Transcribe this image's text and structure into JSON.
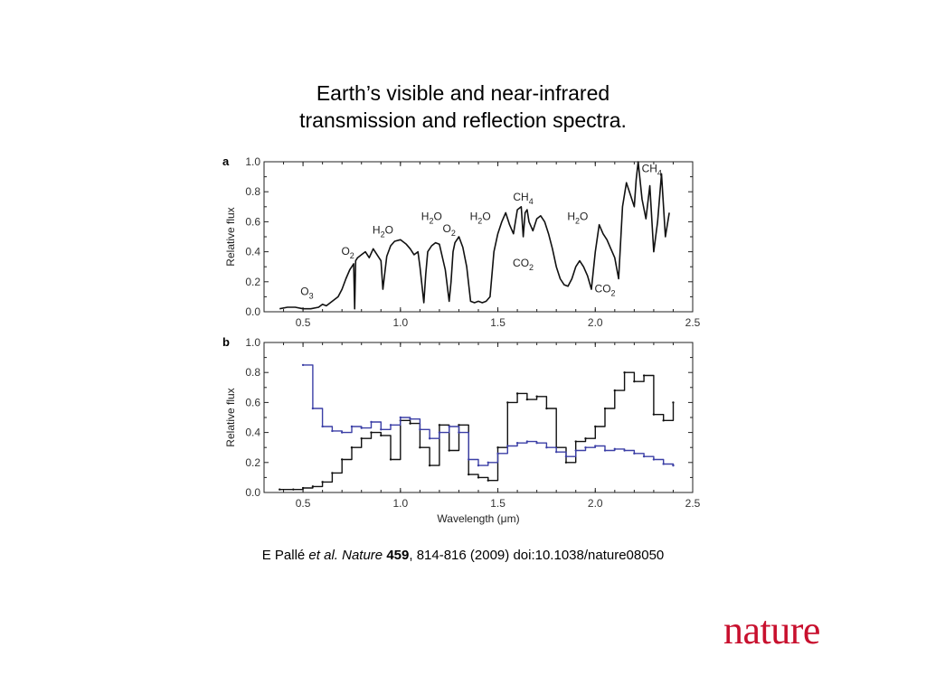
{
  "slide": {
    "title_line1": "Earth’s visible and near-infrared",
    "title_line2": "transmission and reflection spectra.",
    "citation": {
      "author": "E Pallé ",
      "etal": "et al.",
      "journal": "Nature",
      "volume": "459",
      "rest": ", 814-816 (2009) doi:10.1038/nature08050"
    },
    "logo_text": "nature",
    "logo_color": "#c8102e"
  },
  "chart_data": [
    {
      "panel_label": "a",
      "type": "line",
      "ylabel": "Relative flux",
      "xlabel": "",
      "xlim": [
        0.3,
        2.5
      ],
      "ylim": [
        0.0,
        1.0
      ],
      "xticks": [
        "0.5",
        "1.0",
        "1.5",
        "2.0",
        "2.5"
      ],
      "yticks": [
        "0.0",
        "0.2",
        "0.4",
        "0.6",
        "0.8",
        "1.0"
      ],
      "series": [
        {
          "color": "#111111",
          "x": [
            0.38,
            0.42,
            0.46,
            0.5,
            0.54,
            0.58,
            0.6,
            0.62,
            0.65,
            0.68,
            0.7,
            0.72,
            0.74,
            0.75,
            0.76,
            0.765,
            0.77,
            0.78,
            0.8,
            0.82,
            0.84,
            0.86,
            0.88,
            0.9,
            0.91,
            0.93,
            0.95,
            0.97,
            1.0,
            1.03,
            1.05,
            1.07,
            1.09,
            1.1,
            1.12,
            1.13,
            1.14,
            1.16,
            1.18,
            1.2,
            1.23,
            1.25,
            1.26,
            1.27,
            1.28,
            1.3,
            1.32,
            1.34,
            1.36,
            1.38,
            1.4,
            1.42,
            1.44,
            1.46,
            1.48,
            1.5,
            1.52,
            1.54,
            1.56,
            1.58,
            1.6,
            1.62,
            1.63,
            1.64,
            1.65,
            1.66,
            1.68,
            1.7,
            1.72,
            1.74,
            1.76,
            1.78,
            1.8,
            1.82,
            1.84,
            1.86,
            1.88,
            1.9,
            1.92,
            1.94,
            1.96,
            1.98,
            2.0,
            2.02,
            2.04,
            2.06,
            2.08,
            2.1,
            2.12,
            2.14,
            2.16,
            2.18,
            2.2,
            2.21,
            2.22,
            2.24,
            2.26,
            2.28,
            2.3,
            2.32,
            2.34,
            2.36,
            2.38
          ],
          "y": [
            0.02,
            0.03,
            0.03,
            0.02,
            0.02,
            0.03,
            0.05,
            0.04,
            0.07,
            0.1,
            0.15,
            0.22,
            0.28,
            0.3,
            0.32,
            0.02,
            0.34,
            0.36,
            0.38,
            0.4,
            0.36,
            0.42,
            0.38,
            0.34,
            0.15,
            0.37,
            0.44,
            0.47,
            0.48,
            0.45,
            0.42,
            0.38,
            0.4,
            0.3,
            0.06,
            0.25,
            0.4,
            0.44,
            0.46,
            0.45,
            0.28,
            0.07,
            0.2,
            0.4,
            0.46,
            0.5,
            0.43,
            0.3,
            0.07,
            0.06,
            0.07,
            0.06,
            0.07,
            0.1,
            0.4,
            0.52,
            0.6,
            0.66,
            0.58,
            0.52,
            0.68,
            0.7,
            0.5,
            0.66,
            0.68,
            0.6,
            0.54,
            0.62,
            0.64,
            0.6,
            0.52,
            0.42,
            0.3,
            0.22,
            0.18,
            0.17,
            0.22,
            0.3,
            0.34,
            0.3,
            0.24,
            0.15,
            0.4,
            0.58,
            0.52,
            0.48,
            0.42,
            0.36,
            0.22,
            0.7,
            0.86,
            0.78,
            0.7,
            0.88,
            1.0,
            0.75,
            0.62,
            0.84,
            0.4,
            0.6,
            0.92,
            0.5,
            0.66
          ]
        }
      ],
      "annotations": [
        {
          "base": "O",
          "sub": "3",
          "x": 0.52,
          "y": 0.11
        },
        {
          "base": "O",
          "sub": "2",
          "x": 0.73,
          "y": 0.38
        },
        {
          "base": "H",
          "sub": "2",
          "suffix": "O",
          "x": 0.91,
          "y": 0.52
        },
        {
          "base": "H",
          "sub": "2",
          "suffix": "O",
          "x": 1.16,
          "y": 0.61
        },
        {
          "base": "O",
          "sub": "2",
          "x": 1.25,
          "y": 0.53
        },
        {
          "base": "H",
          "sub": "2",
          "suffix": "O",
          "x": 1.41,
          "y": 0.61
        },
        {
          "base": "CH",
          "sub": "4",
          "x": 1.63,
          "y": 0.74
        },
        {
          "base": "CO",
          "sub": "2",
          "x": 1.63,
          "y": 0.3
        },
        {
          "base": "H",
          "sub": "2",
          "suffix": "O",
          "x": 1.91,
          "y": 0.61
        },
        {
          "base": "CO",
          "sub": "2",
          "x": 2.05,
          "y": 0.13
        },
        {
          "base": "CH",
          "sub": "4",
          "x": 2.29,
          "y": 0.93
        }
      ]
    },
    {
      "panel_label": "b",
      "type": "line",
      "ylabel": "Relative flux",
      "xlabel": "Wavelength (μm)",
      "xlim": [
        0.3,
        2.5
      ],
      "ylim": [
        0.0,
        1.0
      ],
      "xticks": [
        "0.5",
        "1.0",
        "1.5",
        "2.0",
        "2.5"
      ],
      "yticks": [
        "0.0",
        "0.2",
        "0.4",
        "0.6",
        "0.8",
        "1.0"
      ],
      "series": [
        {
          "color": "#111111",
          "x": [
            0.38,
            0.45,
            0.5,
            0.55,
            0.6,
            0.65,
            0.7,
            0.75,
            0.8,
            0.85,
            0.9,
            0.95,
            1.0,
            1.05,
            1.1,
            1.15,
            1.2,
            1.25,
            1.3,
            1.35,
            1.4,
            1.45,
            1.5,
            1.55,
            1.6,
            1.65,
            1.7,
            1.75,
            1.8,
            1.85,
            1.9,
            1.95,
            2.0,
            2.05,
            2.1,
            2.15,
            2.2,
            2.25,
            2.3,
            2.35,
            2.4
          ],
          "y": [
            0.02,
            0.02,
            0.03,
            0.04,
            0.07,
            0.13,
            0.22,
            0.3,
            0.36,
            0.4,
            0.38,
            0.22,
            0.48,
            0.46,
            0.3,
            0.18,
            0.45,
            0.28,
            0.45,
            0.12,
            0.1,
            0.08,
            0.3,
            0.6,
            0.66,
            0.62,
            0.64,
            0.56,
            0.3,
            0.2,
            0.34,
            0.36,
            0.44,
            0.56,
            0.68,
            0.8,
            0.74,
            0.78,
            0.52,
            0.48,
            0.6
          ]
        },
        {
          "color": "#3b3fa6",
          "x": [
            0.5,
            0.55,
            0.6,
            0.65,
            0.7,
            0.75,
            0.8,
            0.85,
            0.9,
            0.95,
            1.0,
            1.05,
            1.1,
            1.15,
            1.2,
            1.25,
            1.3,
            1.35,
            1.4,
            1.45,
            1.5,
            1.55,
            1.6,
            1.65,
            1.7,
            1.75,
            1.8,
            1.85,
            1.9,
            1.95,
            2.0,
            2.05,
            2.1,
            2.15,
            2.2,
            2.25,
            2.3,
            2.35,
            2.4
          ],
          "y": [
            0.85,
            0.56,
            0.44,
            0.41,
            0.4,
            0.44,
            0.43,
            0.47,
            0.42,
            0.45,
            0.5,
            0.49,
            0.42,
            0.36,
            0.4,
            0.44,
            0.4,
            0.22,
            0.18,
            0.2,
            0.26,
            0.31,
            0.33,
            0.34,
            0.33,
            0.3,
            0.27,
            0.24,
            0.28,
            0.3,
            0.31,
            0.28,
            0.29,
            0.28,
            0.26,
            0.24,
            0.22,
            0.19,
            0.18
          ]
        }
      ],
      "annotations": []
    }
  ]
}
